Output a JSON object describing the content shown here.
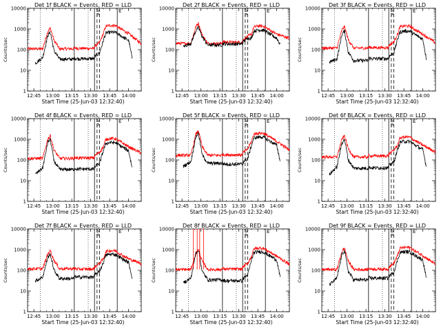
{
  "chart_data": {
    "type": "line",
    "title_template": "Det {n}f BLACK = Events, RED = LLD",
    "xlabel": "Start Time (25-Jun-03 12:32:40)",
    "ylabel": "Counts/sec",
    "x_axis_time_minutes": {
      "min": 760,
      "max": 850
    },
    "xtick_values_minutes": [
      765,
      780,
      795,
      810,
      825,
      840
    ],
    "xtick_labels": [
      "12:45",
      "13:00",
      "13:15",
      "13:30",
      "13:45",
      "14:00"
    ],
    "ytick_values": [
      1,
      10,
      100,
      1000,
      10000
    ],
    "ytick_labels": [
      "1",
      "10",
      "100",
      "1000",
      "10000"
    ],
    "ylim": [
      1,
      10000
    ],
    "yscale": "log",
    "series_names": [
      "Events",
      "LLD"
    ],
    "colors": {
      "events": "#000000",
      "lld": "#ff0000"
    },
    "event_markers": {
      "s_label": "S",
      "p_label": "P",
      "e_label": "E"
    },
    "panels": [
      {
        "detector": "1",
        "solid_lines": [
          797,
          813,
          831
        ],
        "dashed_lines": [
          815,
          817
        ],
        "dotted_lines": [
          770,
          808
        ],
        "lld": {
          "baseline": 110,
          "peak1": 1100,
          "peak2": 1500,
          "mid": 110
        },
        "events": {
          "start": 22,
          "baseline": 35,
          "peak1": 700,
          "peak2": 700,
          "mid": 35
        }
      },
      {
        "detector": "2",
        "solid_lines": [
          797,
          813,
          831
        ],
        "dashed_lines": [
          815,
          817
        ],
        "dotted_lines": [
          770,
          808
        ],
        "lld": {
          "baseline": 200,
          "peak1": 1900,
          "peak2": 1400,
          "mid": 220
        },
        "events": {
          "start": 140,
          "baseline": 170,
          "peak1": 1200,
          "peak2": 900,
          "mid": 180
        }
      },
      {
        "detector": "3",
        "solid_lines": [
          797,
          813,
          831
        ],
        "dashed_lines": [
          815,
          817
        ],
        "dotted_lines": [
          770,
          808
        ],
        "lld": {
          "baseline": 120,
          "peak1": 1300,
          "peak2": 1400,
          "mid": 120
        },
        "events": {
          "start": 25,
          "baseline": 30,
          "peak1": 800,
          "peak2": 800,
          "mid": 35
        }
      },
      {
        "detector": "4",
        "solid_lines": [
          797,
          813,
          831
        ],
        "dashed_lines": [
          815,
          817
        ],
        "dotted_lines": [
          770,
          808
        ],
        "lld": {
          "baseline": 120,
          "peak1": 1500,
          "peak2": 1100,
          "mid": 120
        },
        "events": {
          "start": 20,
          "baseline": 35,
          "peak1": 1000,
          "peak2": 700,
          "mid": 35
        }
      },
      {
        "detector": "5",
        "solid_lines": [
          797,
          813,
          831
        ],
        "dashed_lines": [
          815,
          817
        ],
        "dotted_lines": [
          770,
          808
        ],
        "lld": {
          "baseline": 170,
          "peak1": 2600,
          "peak2": 2000,
          "mid": 170
        },
        "events": {
          "start": 50,
          "baseline": 70,
          "peak1": 2000,
          "peak2": 1300,
          "mid": 60
        }
      },
      {
        "detector": "6",
        "solid_lines": [
          797,
          813,
          831
        ],
        "dashed_lines": [
          815,
          817
        ],
        "dotted_lines": [
          770,
          808
        ],
        "lld": {
          "baseline": 140,
          "peak1": 1500,
          "peak2": 1300,
          "mid": 150
        },
        "events": {
          "start": 20,
          "baseline": 40,
          "peak1": 1000,
          "peak2": 800,
          "mid": 40
        }
      },
      {
        "detector": "7",
        "solid_lines": [
          797,
          813,
          831
        ],
        "dashed_lines": [
          815,
          817
        ],
        "dotted_lines": [
          770,
          808
        ],
        "lld": {
          "baseline": 120,
          "peak1": 900,
          "peak2": 900,
          "mid": 110
        },
        "events": {
          "start": 30,
          "baseline": 40,
          "peak1": 600,
          "peak2": 600,
          "mid": 45
        }
      },
      {
        "detector": "8",
        "solid_lines": [
          797,
          813,
          831
        ],
        "dashed_lines": [
          815,
          817
        ],
        "dotted_lines": [
          770,
          808
        ],
        "lld": {
          "baseline": 110,
          "peak1": 10000,
          "peak2": 1200,
          "mid": 110
        },
        "events": {
          "start": 25,
          "baseline": 35,
          "peak1": 1000,
          "peak2": 800,
          "mid": 30
        }
      },
      {
        "detector": "9",
        "solid_lines": [
          797,
          813,
          831
        ],
        "dashed_lines": [
          815,
          817
        ],
        "dotted_lines": [
          770,
          808
        ],
        "lld": {
          "baseline": 110,
          "peak1": 1200,
          "peak2": 1300,
          "mid": 110
        },
        "events": {
          "start": 20,
          "baseline": 35,
          "peak1": 900,
          "peak2": 800,
          "mid": 40
        }
      }
    ]
  }
}
